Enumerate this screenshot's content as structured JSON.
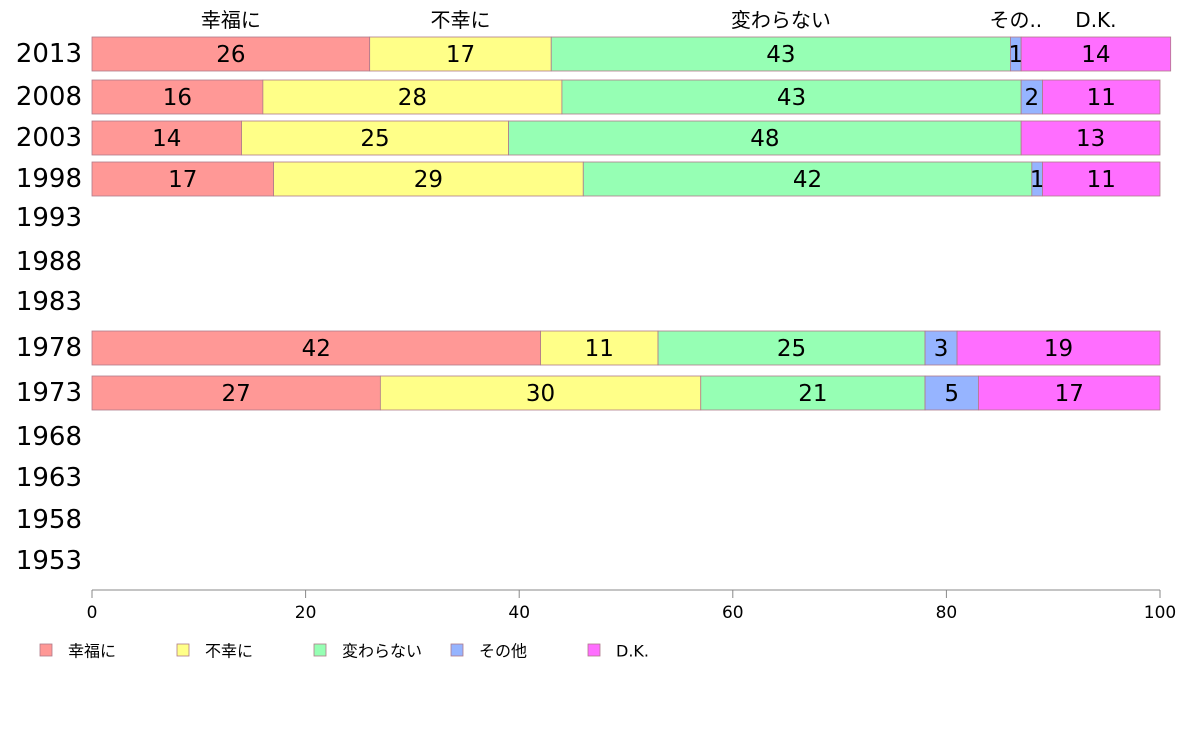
{
  "chart_data": {
    "type": "bar",
    "orientation": "horizontal",
    "stacked": true,
    "categories": [
      "2013",
      "2008",
      "2003",
      "1998",
      "1993",
      "1988",
      "1983",
      "1978",
      "1973",
      "1968",
      "1963",
      "1958",
      "1953"
    ],
    "series": [
      {
        "name": "幸福に",
        "color": "#ff9896",
        "values": [
          26,
          16,
          14,
          17,
          null,
          null,
          null,
          42,
          27,
          null,
          null,
          null,
          null
        ]
      },
      {
        "name": "不幸に",
        "color": "#ffff88",
        "values": [
          17,
          28,
          25,
          29,
          null,
          null,
          null,
          11,
          30,
          null,
          null,
          null,
          null
        ]
      },
      {
        "name": "変わらない",
        "color": "#96ffb4",
        "values": [
          43,
          43,
          48,
          42,
          null,
          null,
          null,
          25,
          21,
          null,
          null,
          null,
          null
        ]
      },
      {
        "name": "その他",
        "color": "#96b4ff",
        "values": [
          1,
          2,
          0,
          1,
          null,
          null,
          null,
          3,
          5,
          null,
          null,
          null,
          null
        ]
      },
      {
        "name": "D.K.",
        "color": "#ff6eff",
        "values": [
          14,
          11,
          13,
          11,
          null,
          null,
          null,
          19,
          17,
          null,
          null,
          null,
          null
        ]
      }
    ],
    "top_labels": [
      "幸福に",
      "不幸に",
      "変わらない",
      "その..",
      "D.K."
    ],
    "xlim": [
      0,
      100
    ],
    "xticks": [
      "0",
      "20",
      "40",
      "60",
      "80",
      "100"
    ],
    "grid": false,
    "legend_position": "bottom"
  }
}
